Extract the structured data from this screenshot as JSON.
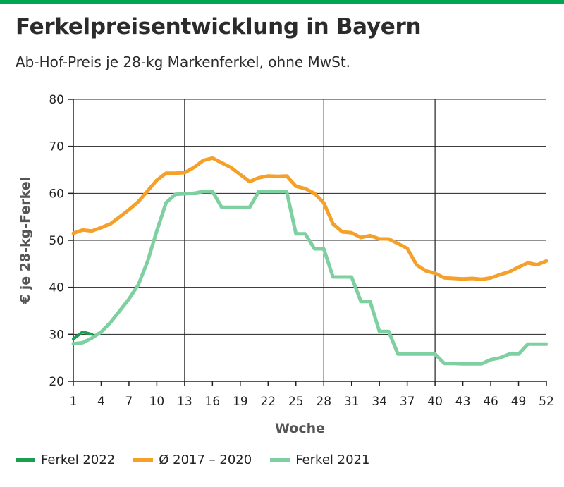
{
  "title": "Ferkelpreisentwicklung in Bayern",
  "subtitle": "Ab-Hof-Preis je 28-kg Markenferkel, ohne MwSt.",
  "colors": {
    "accent": "#00a651",
    "avg": "#f5a028",
    "ferkel2021": "#7fd0a0",
    "ferkel2022": "#1a9e50"
  },
  "chart_data": {
    "type": "line",
    "xlabel": "Woche",
    "ylabel": "€ je 28-kg-Ferkel",
    "xlim": [
      1,
      52
    ],
    "ylim": [
      20,
      80
    ],
    "x_ticks": [
      1,
      4,
      7,
      10,
      13,
      16,
      19,
      22,
      25,
      28,
      31,
      34,
      37,
      40,
      43,
      46,
      49,
      52
    ],
    "y_ticks": [
      20,
      30,
      40,
      50,
      60,
      70,
      80
    ],
    "grid": {
      "vertical_at": [
        13,
        28,
        40
      ],
      "horizontal": true
    },
    "legend_position": "bottom",
    "series": [
      {
        "name": "Ferkel 2022",
        "color_key": "ferkel2022",
        "x": [
          1,
          2,
          3
        ],
        "y": [
          29.0,
          30.5,
          30.0
        ]
      },
      {
        "name": "Ø 2017 – 2020",
        "color_key": "avg",
        "x": [
          1,
          2,
          3,
          4,
          5,
          6,
          7,
          8,
          9,
          10,
          11,
          12,
          13,
          14,
          15,
          16,
          17,
          18,
          19,
          20,
          21,
          22,
          23,
          24,
          25,
          26,
          27,
          28,
          29,
          30,
          31,
          32,
          33,
          34,
          35,
          36,
          37,
          38,
          39,
          40,
          41,
          42,
          43,
          44,
          45,
          46,
          47,
          48,
          49,
          50,
          51,
          52
        ],
        "y": [
          51.5,
          52.2,
          52.0,
          52.7,
          53.5,
          55.0,
          56.5,
          58.2,
          60.5,
          62.8,
          64.3,
          64.3,
          64.4,
          65.5,
          67.0,
          67.5,
          66.5,
          65.5,
          64.0,
          62.5,
          63.3,
          63.7,
          63.6,
          63.7,
          61.5,
          61.0,
          60.0,
          58.0,
          53.5,
          51.8,
          51.6,
          50.6,
          51.0,
          50.3,
          50.3,
          49.3,
          48.3,
          44.8,
          43.5,
          43.0,
          42.0,
          41.9,
          41.8,
          41.9,
          41.7,
          42.0,
          42.7,
          43.3,
          44.3,
          45.2,
          44.8,
          45.6
        ]
      },
      {
        "name": "Ferkel 2021",
        "color_key": "ferkel2021",
        "x": [
          1,
          2,
          3,
          4,
          5,
          6,
          7,
          8,
          9,
          10,
          11,
          12,
          13,
          14,
          15,
          16,
          17,
          18,
          19,
          20,
          21,
          22,
          23,
          24,
          25,
          26,
          27,
          28,
          29,
          30,
          31,
          32,
          33,
          34,
          35,
          36,
          37,
          38,
          39,
          40,
          41,
          42,
          43,
          44,
          45,
          46,
          47,
          48,
          49,
          50,
          51,
          52
        ],
        "y": [
          28.0,
          28.2,
          29.2,
          30.5,
          32.5,
          35.0,
          37.5,
          40.5,
          45.5,
          52.0,
          58.0,
          59.8,
          59.9,
          60.0,
          60.4,
          60.4,
          57.0,
          57.0,
          57.0,
          57.0,
          60.4,
          60.4,
          60.4,
          60.4,
          51.4,
          51.4,
          48.2,
          48.2,
          42.2,
          42.2,
          42.2,
          37.0,
          37.0,
          30.6,
          30.6,
          25.8,
          25.8,
          25.8,
          25.8,
          25.8,
          23.8,
          23.8,
          23.7,
          23.7,
          23.7,
          24.6,
          25.0,
          25.8,
          25.8,
          27.9,
          27.9,
          27.9
        ]
      }
    ]
  }
}
